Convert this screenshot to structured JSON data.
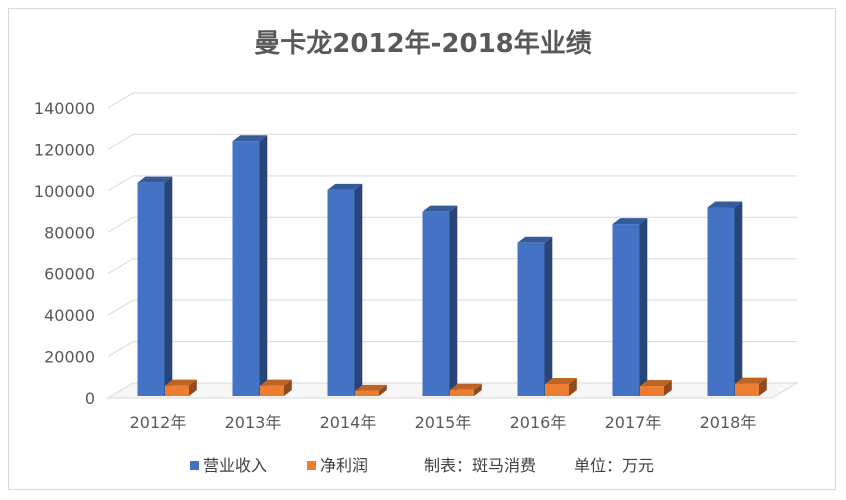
{
  "chart_data": {
    "type": "bar",
    "title": "曼卡龙2012年-2018年业绩",
    "categories": [
      "2012年",
      "2013年",
      "2014年",
      "2015年",
      "2016年",
      "2017年",
      "2018年"
    ],
    "series": [
      {
        "name": "营业收入",
        "color": "#4472C4",
        "values": [
          103000,
          123000,
          99500,
          89000,
          74000,
          83000,
          91000
        ]
      },
      {
        "name": "净利润",
        "color": "#ED7D31",
        "values": [
          5000,
          5000,
          2500,
          3000,
          5800,
          4800,
          6000
        ]
      }
    ],
    "ylim": [
      0,
      140000
    ],
    "yticks": [
      0,
      20000,
      40000,
      60000,
      80000,
      100000,
      120000,
      140000
    ],
    "grid": true,
    "legend_position": "bottom",
    "notes": [
      "制表：斑马消费",
      "单位：万元"
    ]
  }
}
